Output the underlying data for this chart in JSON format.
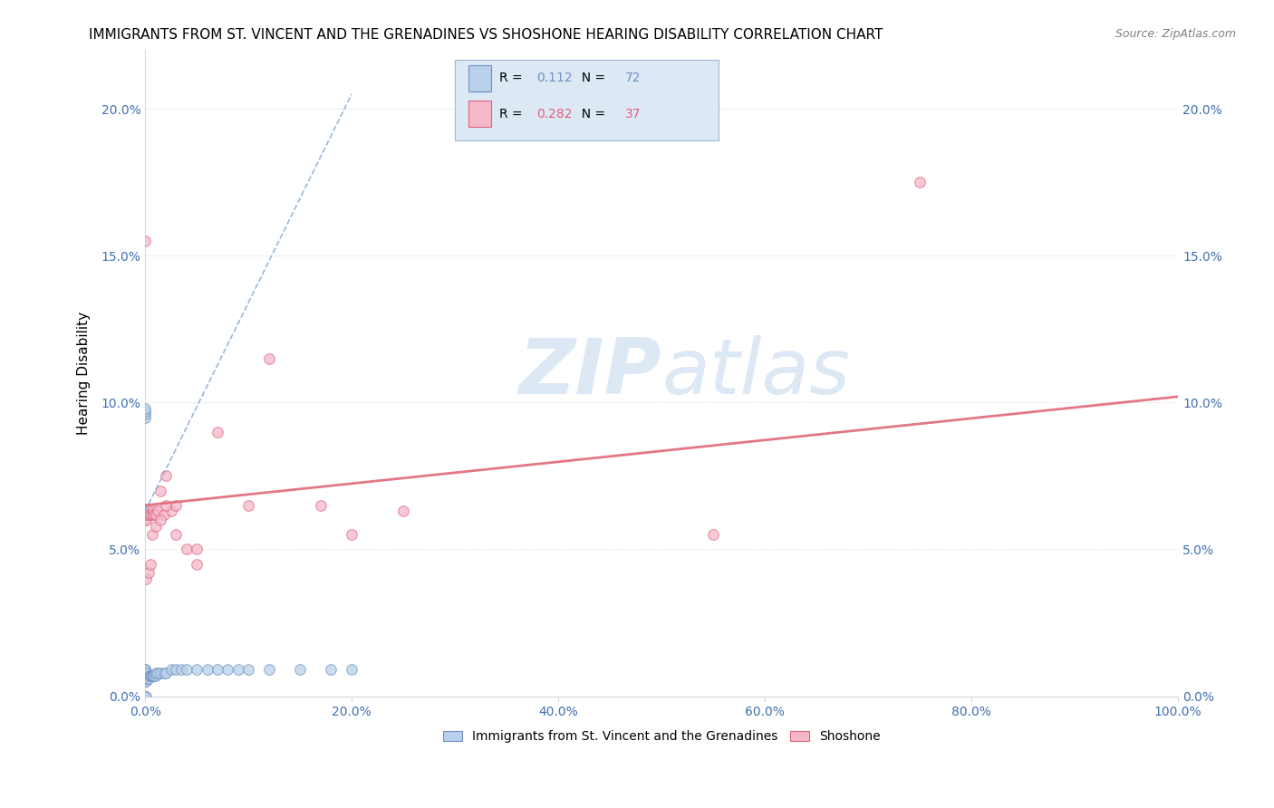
{
  "title": "IMMIGRANTS FROM ST. VINCENT AND THE GRENADINES VS SHOSHONE HEARING DISABILITY CORRELATION CHART",
  "source": "Source: ZipAtlas.com",
  "ylabel": "Hearing Disability",
  "xlim": [
    0.0,
    1.0
  ],
  "ylim": [
    0.0,
    0.22
  ],
  "ytick_labels": [
    "0.0%",
    "5.0%",
    "10.0%",
    "15.0%",
    "20.0%"
  ],
  "ytick_vals": [
    0.0,
    0.05,
    0.1,
    0.15,
    0.2
  ],
  "xtick_vals": [
    0.0,
    0.2,
    0.4,
    0.6,
    0.8,
    1.0
  ],
  "blue_R": "0.112",
  "blue_N": "72",
  "pink_R": "0.282",
  "pink_N": "37",
  "blue_fill": "#b8d0ea",
  "blue_edge": "#7090c0",
  "pink_fill": "#f4b8c8",
  "pink_edge": "#e06080",
  "blue_line": "#8aaad8",
  "pink_line": "#e06878",
  "legend_bg": "#dce8f4",
  "legend_border": "#a0b8d0",
  "grid_color": "#d8d8d8",
  "watermark_color": "#dce8f4",
  "tick_color": "#4070b0",
  "title_fontsize": 11,
  "ylabel_fontsize": 11,
  "tick_fontsize": 10,
  "source_fontsize": 9,
  "legend_fontsize": 10,
  "blue_scatter_x": [
    0.0,
    0.0,
    0.0,
    0.0,
    0.0,
    0.0,
    0.0,
    0.0,
    0.0,
    0.0,
    0.0,
    0.0,
    0.0,
    0.0,
    0.0,
    0.0,
    0.0,
    0.0,
    0.0,
    0.0,
    0.0,
    0.0,
    0.0,
    0.0,
    0.0,
    0.0,
    0.0,
    0.0,
    0.0,
    0.0,
    0.0,
    0.0,
    0.0,
    0.0,
    0.0,
    0.0,
    0.0,
    0.0,
    0.0,
    0.0,
    0.001,
    0.001,
    0.001,
    0.002,
    0.002,
    0.003,
    0.004,
    0.005,
    0.006,
    0.007,
    0.008,
    0.009,
    0.01,
    0.01,
    0.012,
    0.015,
    0.018,
    0.02,
    0.025,
    0.03,
    0.035,
    0.04,
    0.05,
    0.06,
    0.07,
    0.08,
    0.09,
    0.1,
    0.12,
    0.15,
    0.18,
    0.2
  ],
  "blue_scatter_y": [
    0.0,
    0.0,
    0.0,
    0.0,
    0.0,
    0.0,
    0.0,
    0.0,
    0.0,
    0.0,
    0.0,
    0.0,
    0.0,
    0.0,
    0.0,
    0.0,
    0.0,
    0.0,
    0.0,
    0.0,
    0.0,
    0.0,
    0.0,
    0.0,
    0.0,
    0.005,
    0.005,
    0.006,
    0.006,
    0.007,
    0.007,
    0.008,
    0.008,
    0.009,
    0.009,
    0.009,
    0.095,
    0.096,
    0.097,
    0.098,
    0.0,
    0.005,
    0.007,
    0.006,
    0.008,
    0.006,
    0.007,
    0.007,
    0.007,
    0.007,
    0.007,
    0.007,
    0.007,
    0.008,
    0.008,
    0.008,
    0.008,
    0.008,
    0.009,
    0.009,
    0.009,
    0.009,
    0.009,
    0.009,
    0.009,
    0.009,
    0.009,
    0.009,
    0.009,
    0.009,
    0.009,
    0.009
  ],
  "pink_scatter_x": [
    0.0,
    0.0,
    0.0,
    0.001,
    0.002,
    0.003,
    0.004,
    0.005,
    0.007,
    0.008,
    0.009,
    0.01,
    0.012,
    0.015,
    0.018,
    0.02,
    0.025,
    0.03,
    0.04,
    0.05,
    0.07,
    0.1,
    0.12,
    0.17,
    0.2,
    0.25,
    0.001,
    0.003,
    0.005,
    0.007,
    0.01,
    0.015,
    0.02,
    0.03,
    0.05,
    0.55,
    0.75
  ],
  "pink_scatter_y": [
    0.155,
    0.06,
    0.062,
    0.06,
    0.062,
    0.063,
    0.062,
    0.062,
    0.062,
    0.063,
    0.062,
    0.062,
    0.063,
    0.07,
    0.062,
    0.075,
    0.063,
    0.065,
    0.05,
    0.05,
    0.09,
    0.065,
    0.115,
    0.065,
    0.055,
    0.063,
    0.04,
    0.042,
    0.045,
    0.055,
    0.058,
    0.06,
    0.065,
    0.055,
    0.045,
    0.055,
    0.175
  ],
  "blue_line_x0": 0.0,
  "blue_line_y0": 0.063,
  "blue_line_x1": 0.2,
  "blue_line_y1": 0.205,
  "pink_line_x0": 0.0,
  "pink_line_y0": 0.065,
  "pink_line_x1": 1.0,
  "pink_line_y1": 0.102
}
